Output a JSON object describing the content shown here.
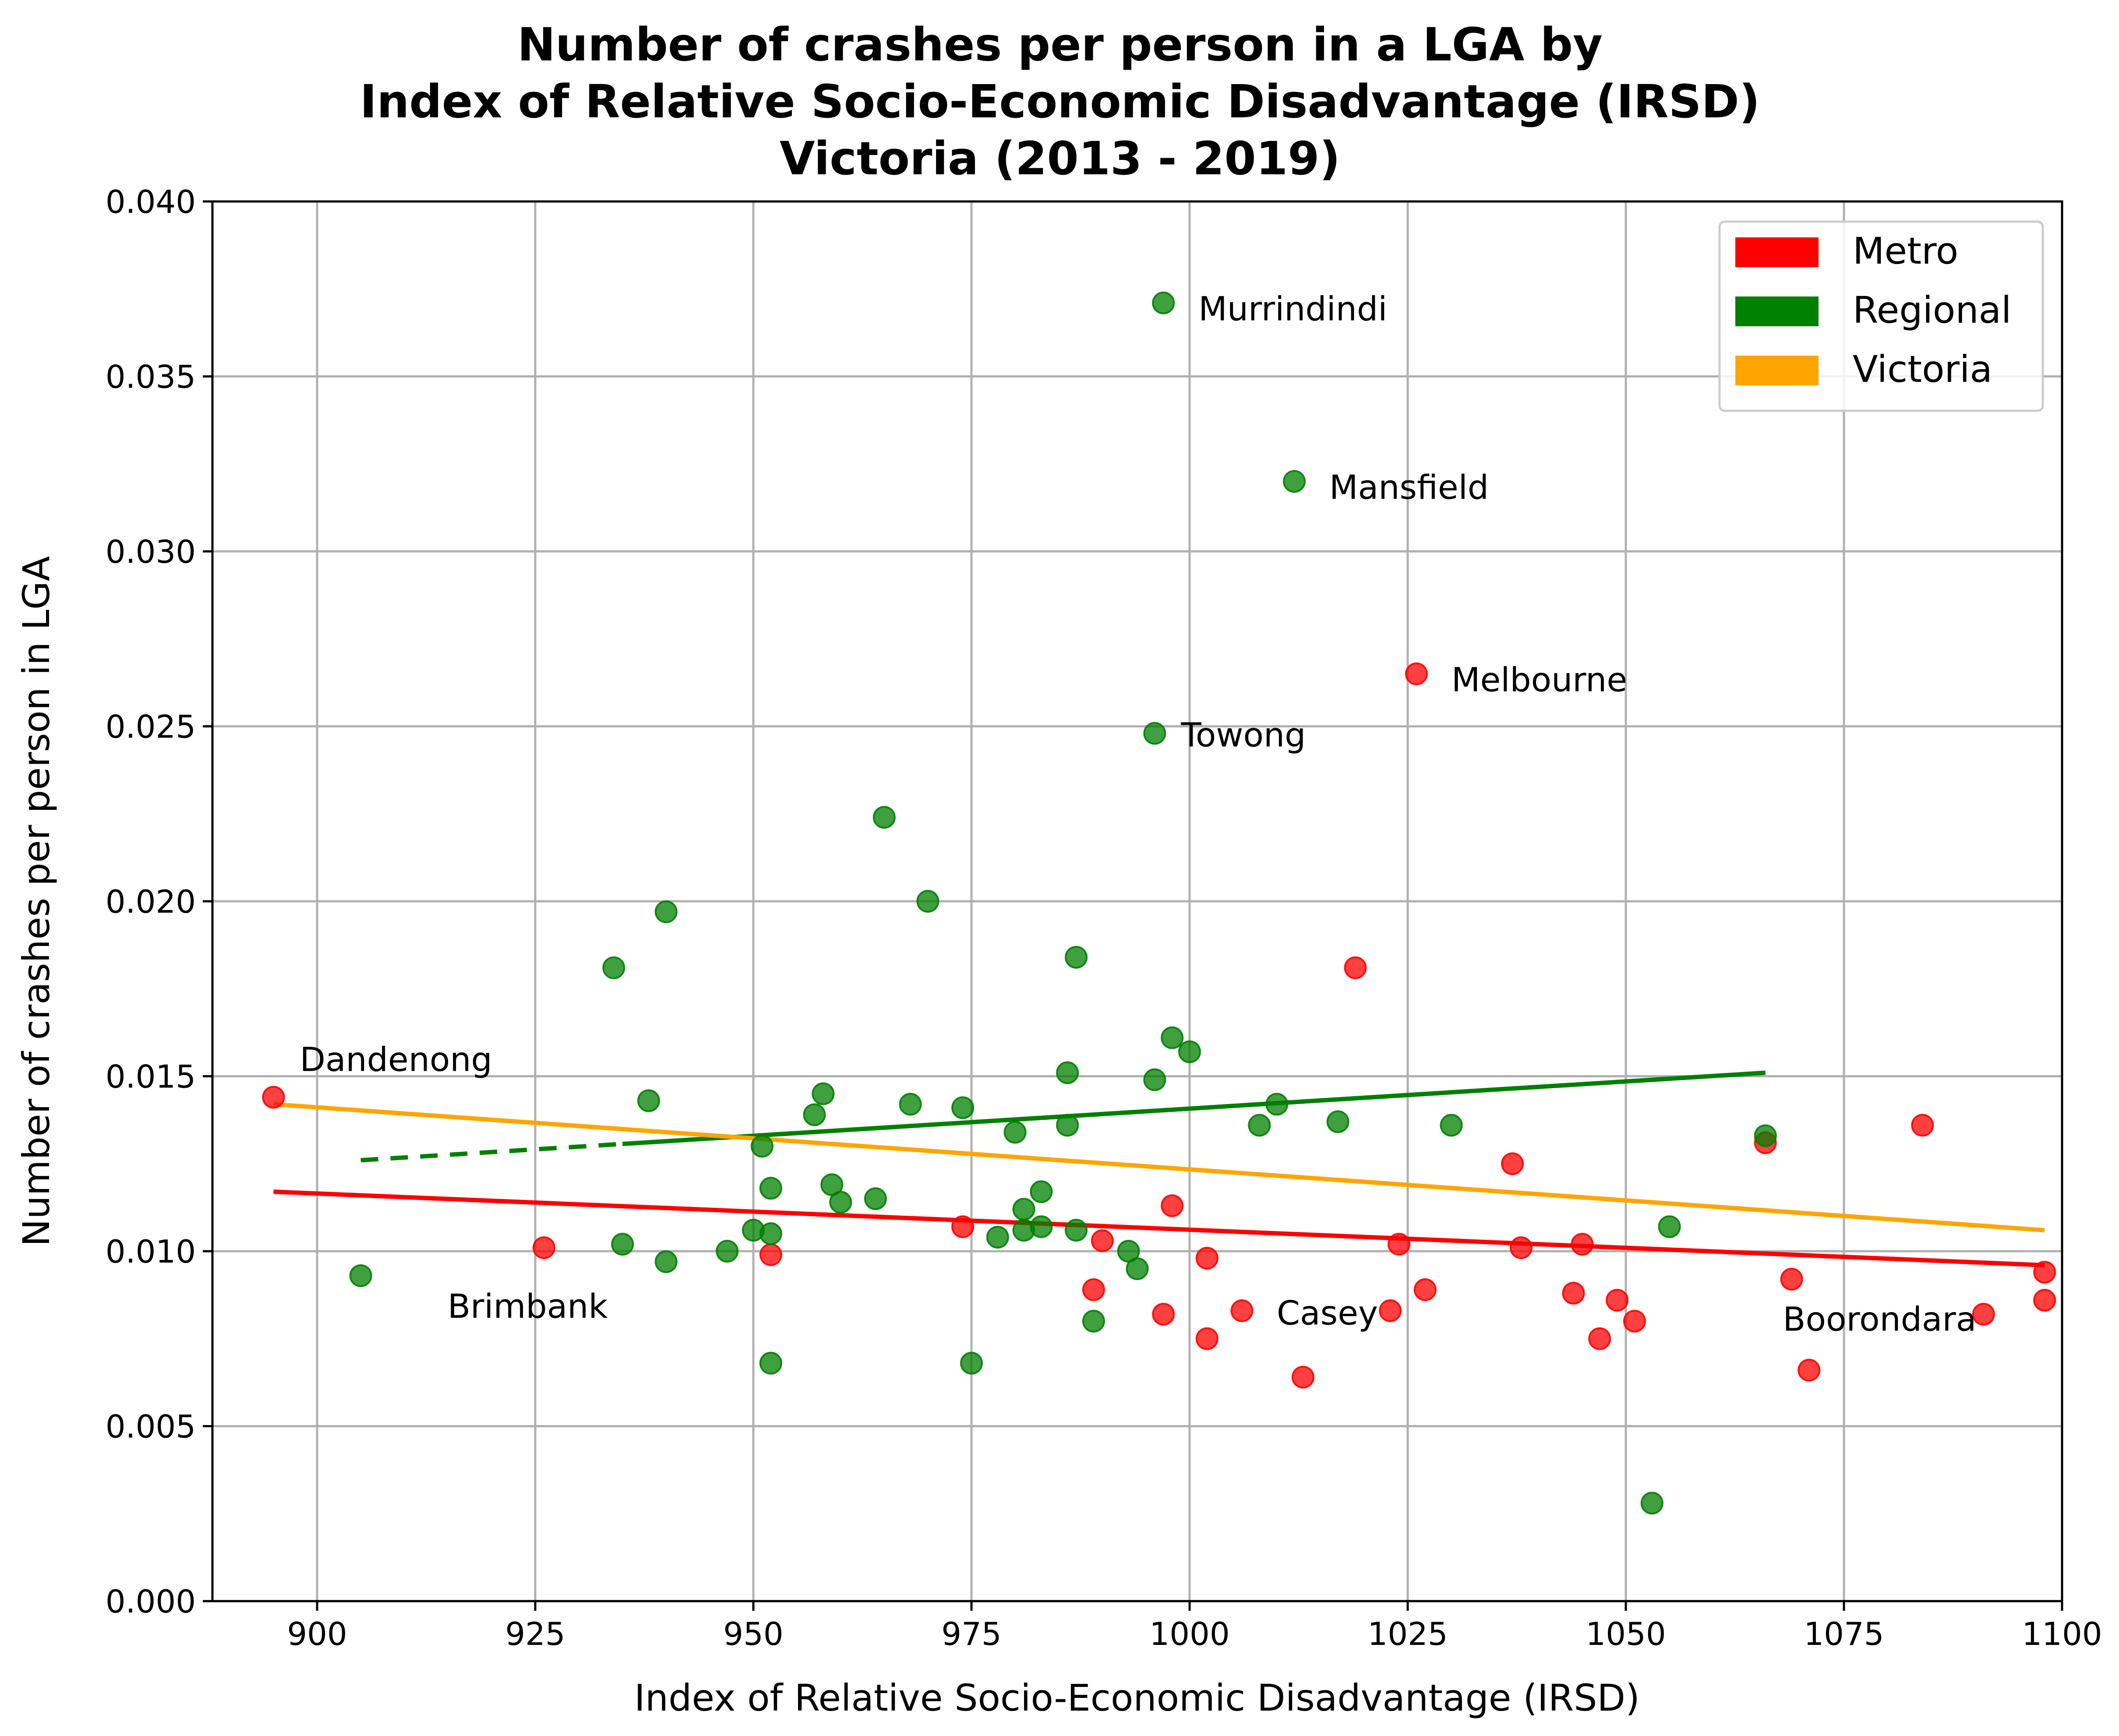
{
  "chart_data": {
    "type": "scatter",
    "title": [
      "Number of crashes per person in a LGA by",
      "Index of Relative Socio-Economic Disadvantage (IRSD)",
      "Victoria (2013 - 2019)"
    ],
    "xlabel": "Index of Relative Socio-Economic Disadvantage (IRSD)",
    "ylabel": "Number of crashes per person in LGA",
    "xlim": [
      888,
      1100
    ],
    "ylim": [
      0,
      0.04
    ],
    "x_ticks": [
      900,
      925,
      950,
      975,
      1000,
      1025,
      1050,
      1075,
      1100
    ],
    "y_ticks": [
      0.0,
      0.005,
      0.01,
      0.015,
      0.02,
      0.025,
      0.03,
      0.035,
      0.04
    ],
    "x_tick_labels": [
      "900",
      "925",
      "950",
      "975",
      "1000",
      "1025",
      "1050",
      "1075",
      "1100"
    ],
    "y_tick_labels": [
      "0.000",
      "0.005",
      "0.010",
      "0.015",
      "0.020",
      "0.025",
      "0.030",
      "0.035",
      "0.040"
    ],
    "grid": true,
    "legend_position": "top-right",
    "legend": [
      {
        "label": "Metro",
        "color": "#ff0000"
      },
      {
        "label": "Regional",
        "color": "#008000"
      },
      {
        "label": "Victoria",
        "color": "#ffa500"
      }
    ],
    "series": [
      {
        "name": "Metro",
        "color": "#ff0000",
        "points": [
          [
            895,
            0.0144
          ],
          [
            926,
            0.0101
          ],
          [
            952,
            0.0099
          ],
          [
            974,
            0.0107
          ],
          [
            989,
            0.0089
          ],
          [
            990,
            0.0103
          ],
          [
            997,
            0.0082
          ],
          [
            998,
            0.0113
          ],
          [
            1002,
            0.0098
          ],
          [
            1002,
            0.0075
          ],
          [
            1006,
            0.0083
          ],
          [
            1013,
            0.0064
          ],
          [
            1019,
            0.0181
          ],
          [
            1023,
            0.0083
          ],
          [
            1024,
            0.0102
          ],
          [
            1026,
            0.0265
          ],
          [
            1027,
            0.0089
          ],
          [
            1037,
            0.0125
          ],
          [
            1038,
            0.0101
          ],
          [
            1044,
            0.0088
          ],
          [
            1045,
            0.0102
          ],
          [
            1047,
            0.0075
          ],
          [
            1049,
            0.0086
          ],
          [
            1051,
            0.008
          ],
          [
            1066,
            0.0131
          ],
          [
            1069,
            0.0092
          ],
          [
            1071,
            0.0066
          ],
          [
            1084,
            0.0136
          ],
          [
            1091,
            0.0082
          ],
          [
            1098,
            0.0094
          ],
          [
            1098,
            0.0086
          ]
        ]
      },
      {
        "name": "Regional",
        "color": "#008000",
        "points": [
          [
            905,
            0.0093
          ],
          [
            934,
            0.0181
          ],
          [
            935,
            0.0102
          ],
          [
            938,
            0.0143
          ],
          [
            940,
            0.0197
          ],
          [
            940,
            0.0097
          ],
          [
            947,
            0.01
          ],
          [
            950,
            0.0106
          ],
          [
            951,
            0.013
          ],
          [
            952,
            0.0118
          ],
          [
            952,
            0.0105
          ],
          [
            952,
            0.0068
          ],
          [
            957,
            0.0139
          ],
          [
            958,
            0.0145
          ],
          [
            959,
            0.0119
          ],
          [
            960,
            0.0114
          ],
          [
            964,
            0.0115
          ],
          [
            965,
            0.0224
          ],
          [
            968,
            0.0142
          ],
          [
            970,
            0.02
          ],
          [
            974,
            0.0141
          ],
          [
            975,
            0.0068
          ],
          [
            978,
            0.0104
          ],
          [
            980,
            0.0134
          ],
          [
            981,
            0.0112
          ],
          [
            981,
            0.0106
          ],
          [
            983,
            0.0117
          ],
          [
            983,
            0.0107
          ],
          [
            986,
            0.0151
          ],
          [
            986,
            0.0136
          ],
          [
            987,
            0.0184
          ],
          [
            987,
            0.0106
          ],
          [
            989,
            0.008
          ],
          [
            993,
            0.01
          ],
          [
            994,
            0.0095
          ],
          [
            996,
            0.0149
          ],
          [
            996,
            0.0248
          ],
          [
            997,
            0.0371
          ],
          [
            998,
            0.0161
          ],
          [
            1000,
            0.0157
          ],
          [
            1008,
            0.0136
          ],
          [
            1010,
            0.0142
          ],
          [
            1012,
            0.032
          ],
          [
            1017,
            0.0137
          ],
          [
            1030,
            0.0136
          ],
          [
            1053,
            0.0028
          ],
          [
            1055,
            0.0107
          ],
          [
            1066,
            0.0133
          ]
        ]
      }
    ],
    "trend_lines": [
      {
        "name": "Regional",
        "color": "#008000",
        "from": [
          905,
          0.0126
        ],
        "to": [
          1066,
          0.0151
        ],
        "dashed_until": 935
      },
      {
        "name": "Victoria",
        "color": "#ffa500",
        "from": [
          895,
          0.0142
        ],
        "to": [
          1098,
          0.0106
        ]
      },
      {
        "name": "Metro",
        "color": "#ff0000",
        "from": [
          895,
          0.0117
        ],
        "to": [
          1098,
          0.0096
        ]
      }
    ],
    "annotations": [
      {
        "text": "Murrindindi",
        "x": 997,
        "y": 0.0371
      },
      {
        "text": "Mansfield",
        "x": 1012,
        "y": 0.032
      },
      {
        "text": "Melbourne",
        "x": 1026,
        "y": 0.0265
      },
      {
        "text": "Towong",
        "x": 996,
        "y": 0.0248
      },
      {
        "text": "Dandenong",
        "x": 895,
        "y": 0.0144
      },
      {
        "text": "Brimbank",
        "x": 926,
        "y": 0.0101
      },
      {
        "text": "Casey",
        "x": 1013,
        "y": 0.0064
      },
      {
        "text": "Boorondara",
        "x": 1071,
        "y": 0.0066
      }
    ]
  }
}
